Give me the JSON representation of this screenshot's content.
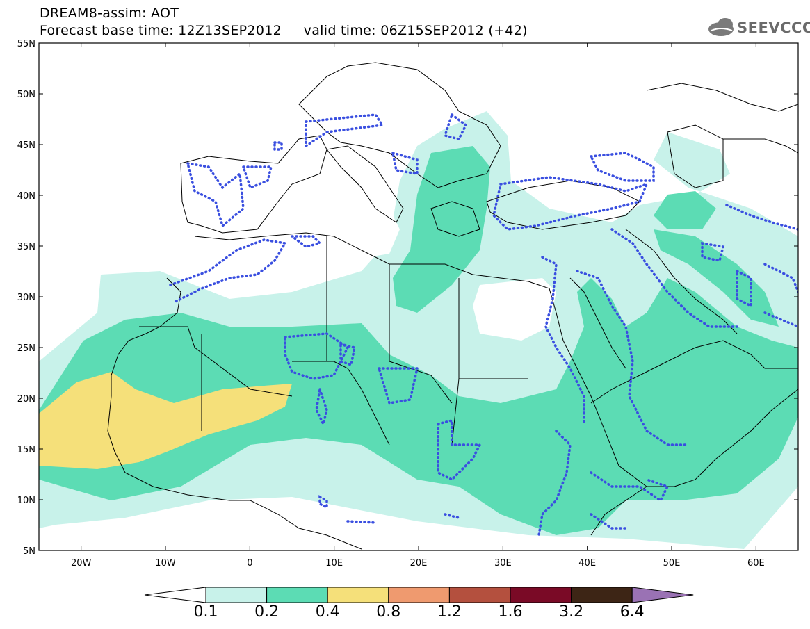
{
  "header": {
    "title_line1": "DREAM8-assim: AOT",
    "title_line2": "Forecast base time: 12Z13SEP2012     valid time: 06Z15SEP2012 (+42)",
    "logo_text": "SEEVCCC"
  },
  "map": {
    "lon_range": [
      -25,
      65
    ],
    "lat_range": [
      5,
      55
    ],
    "lat_ticks": [
      "55N",
      "50N",
      "45N",
      "40N",
      "35N",
      "30N",
      "25N",
      "20N",
      "15N",
      "10N",
      "5N"
    ],
    "lon_ticks": [
      "20W",
      "10W",
      "0",
      "10E",
      "20E",
      "30E",
      "40E",
      "50E",
      "60E"
    ],
    "contour_line_color": "#3a4fe0"
  },
  "colorbar": {
    "thresholds": [
      "0.1",
      "0.2",
      "0.4",
      "0.8",
      "1.2",
      "1.6",
      "3.2",
      "6.4"
    ],
    "colors": [
      "#c8f2ea",
      "#5cdcb4",
      "#f5e07a",
      "#ef9a6f",
      "#b4503e",
      "#7a0a26",
      "#3d2515",
      "#9a72b4"
    ]
  }
}
